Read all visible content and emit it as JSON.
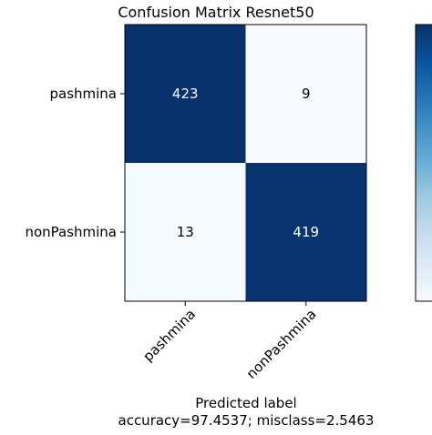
{
  "chart_data": {
    "type": "heatmap",
    "title": "Confusion Matrix Resnet50",
    "xlabel": "Predicted label",
    "xlabel_note": "accuracy=97.4537; misclass=2.5463",
    "ylabel": "",
    "row_labels": [
      "pashmina",
      "nonPashmina"
    ],
    "col_labels": [
      "pashmina",
      "nonPashmina"
    ],
    "values": [
      [
        423,
        9
      ],
      [
        13,
        419
      ]
    ],
    "colormap": "Blues",
    "colorbar": true,
    "colors": {
      "high": "#08306b",
      "low": "#f7fbff",
      "text_on_dark": "#ffffff",
      "text_on_light": "#000000"
    }
  }
}
